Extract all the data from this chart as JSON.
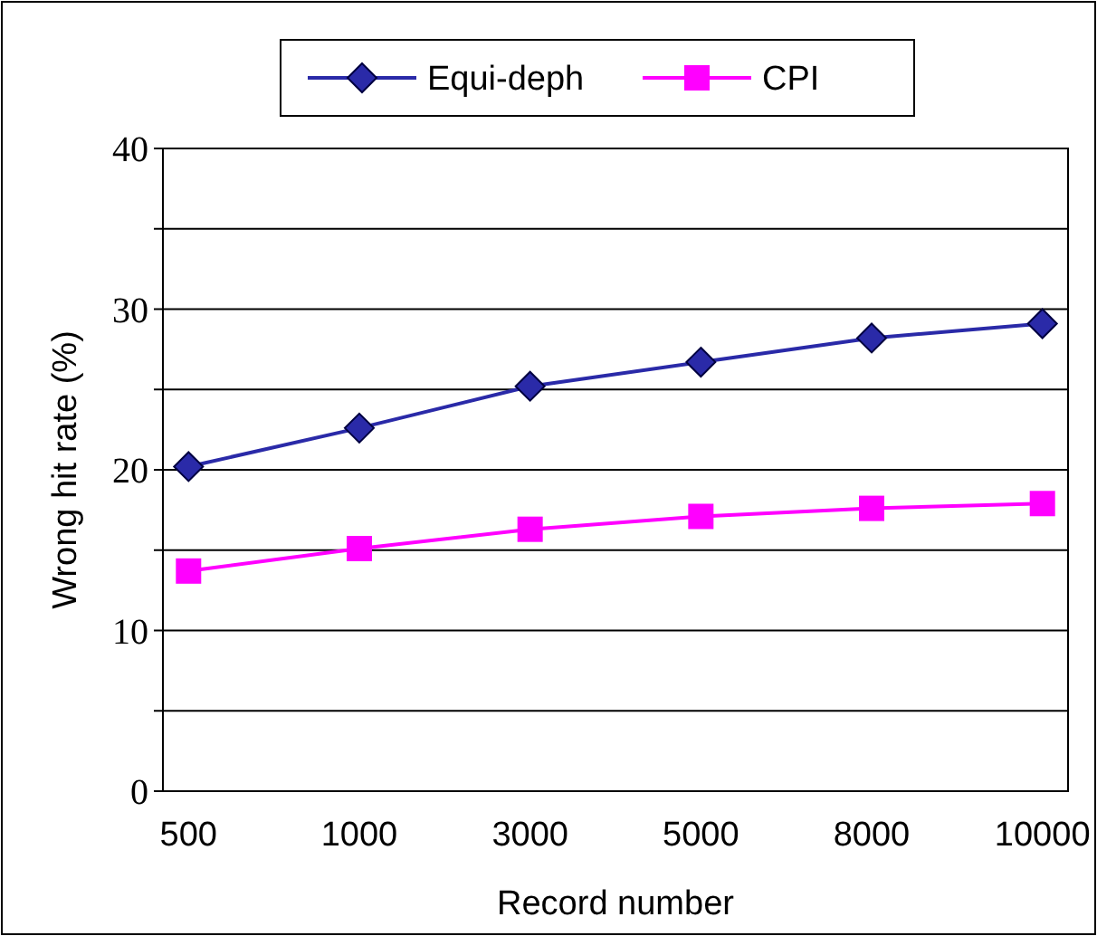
{
  "chart_data": {
    "type": "line",
    "xlabel": "Record number",
    "ylabel": "Wrong hit rate (%)",
    "categories": [
      "500",
      "1000",
      "3000",
      "5000",
      "8000",
      "10000"
    ],
    "series": [
      {
        "name": "Equi-deph",
        "color": "#2a2aa8",
        "marker": "diamond",
        "values": [
          20.2,
          22.6,
          25.2,
          26.7,
          28.2,
          29.1
        ]
      },
      {
        "name": "CPI",
        "color": "#ff00ff",
        "marker": "square",
        "values": [
          13.7,
          15.1,
          16.3,
          17.1,
          17.6,
          17.9
        ]
      }
    ],
    "ylim": [
      0,
      40
    ],
    "yticks": [
      0,
      {
        "value": 5,
        "label": null
      },
      10,
      {
        "value": 15,
        "label": null
      },
      20,
      {
        "value": 25,
        "label": null
      },
      30,
      {
        "value": 35,
        "label": null
      },
      40
    ],
    "grid": "y",
    "legend": "top"
  }
}
